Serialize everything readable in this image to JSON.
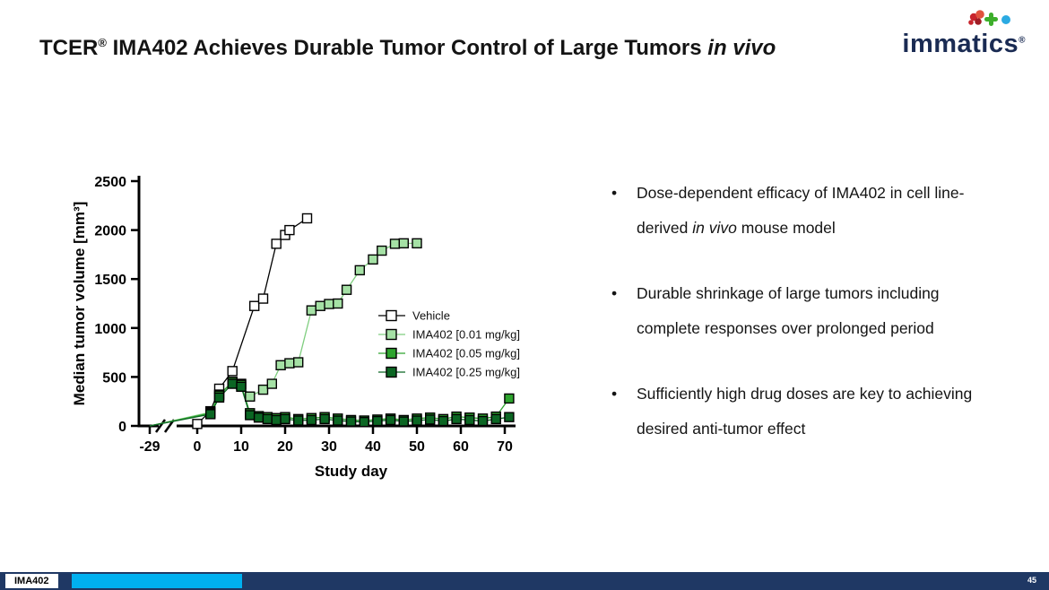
{
  "slide": {
    "title": {
      "prefix": "TCER",
      "reg": "®",
      "rest": " IMA402 Achieves Durable Tumor Control of Large Tumors ",
      "italic": "in vivo"
    },
    "logo": {
      "text": "immatics",
      "reg": "®"
    },
    "footer": {
      "label": "IMA402",
      "page": "45"
    }
  },
  "bullets": [
    {
      "segments": [
        {
          "text": "Dose-dependent efficacy of IMA402 in cell line-derived "
        },
        {
          "text": "in vivo",
          "italic": true
        },
        {
          "text": " mouse model"
        }
      ]
    },
    {
      "segments": [
        {
          "text": "Durable shrinkage of large tumors including complete responses over prolonged period"
        }
      ]
    },
    {
      "segments": [
        {
          "text": "Sufficiently high drug doses are key to achieving desired anti-tumor effect"
        }
      ]
    }
  ],
  "chart_data": {
    "type": "scatter",
    "title": "",
    "xlabel": "Study day",
    "ylabel": "Median tumor volume [mm³]",
    "xlim": [
      -29,
      75
    ],
    "ylim": [
      0,
      2500
    ],
    "xticks": [
      0,
      10,
      20,
      30,
      40,
      50,
      60,
      70
    ],
    "yticks": [
      0,
      500,
      1000,
      1500,
      2000,
      2500
    ],
    "pre_break_tick": -29,
    "axis_break": true,
    "grid": false,
    "legend_position": "inside-right",
    "series": [
      {
        "name": "Vehicle",
        "fill": "#FFFFFF",
        "line": "#000000",
        "from_break": false,
        "x": [
          0,
          3,
          5,
          8,
          13,
          15,
          18,
          20,
          21,
          25
        ],
        "y": [
          20,
          150,
          380,
          560,
          1225,
          1300,
          1860,
          1950,
          2000,
          2120
        ]
      },
      {
        "name": "IMA402 [0.01 mg/kg]",
        "fill": "#A5E1A5",
        "line": "#7FCE7F",
        "from_break": true,
        "x": [
          3,
          5,
          8,
          10,
          12,
          15,
          17,
          19,
          21,
          23,
          26,
          28,
          30,
          32,
          34,
          37,
          40,
          42,
          45,
          47,
          50
        ],
        "y": [
          140,
          320,
          450,
          430,
          300,
          370,
          430,
          620,
          640,
          650,
          1180,
          1225,
          1245,
          1250,
          1390,
          1590,
          1700,
          1790,
          1860,
          1865,
          1865
        ]
      },
      {
        "name": "IMA402 [0.05 mg/kg]",
        "fill": "#2EA42E",
        "line": "#2EA42E",
        "from_break": true,
        "x": [
          3,
          5,
          8,
          10,
          12,
          14,
          16,
          18,
          20,
          23,
          26,
          29,
          32,
          35,
          38,
          41,
          44,
          47,
          50,
          53,
          56,
          59,
          62,
          65,
          68,
          71
        ],
        "y": [
          130,
          310,
          450,
          420,
          130,
          100,
          90,
          80,
          90,
          70,
          80,
          90,
          75,
          60,
          55,
          65,
          75,
          60,
          75,
          85,
          70,
          95,
          85,
          75,
          95,
          280
        ]
      },
      {
        "name": "IMA402 [0.25 mg/kg]",
        "fill": "#0B6623",
        "line": "#0B6623",
        "from_break": true,
        "x": [
          3,
          5,
          8,
          10,
          12,
          14,
          16,
          18,
          20,
          23,
          26,
          29,
          32,
          35,
          38,
          41,
          44,
          47,
          50,
          53,
          56,
          59,
          62,
          65,
          68,
          71
        ],
        "y": [
          120,
          290,
          430,
          400,
          110,
          85,
          70,
          60,
          70,
          55,
          60,
          70,
          55,
          45,
          40,
          50,
          60,
          45,
          55,
          65,
          50,
          70,
          60,
          50,
          70,
          90
        ]
      }
    ]
  }
}
